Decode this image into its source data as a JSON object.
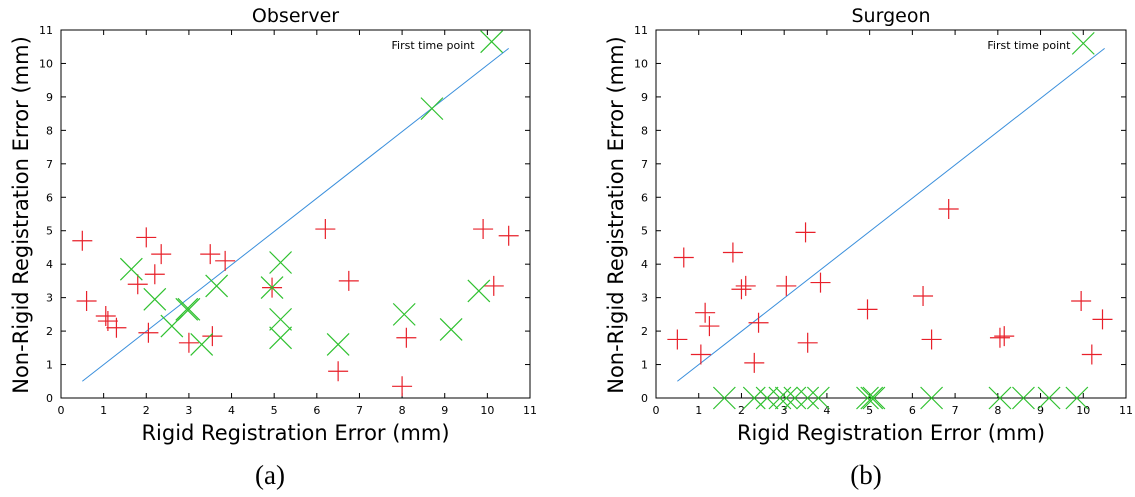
{
  "figure": {
    "captions": [
      "(a)",
      "(b)"
    ]
  },
  "style": {
    "plus_color": "#e8202a",
    "cross_color": "#2fc12f",
    "line_color": "#3a8fdc",
    "axis_color": "#000000"
  },
  "chart_data": [
    {
      "type": "scatter",
      "title": "Observer",
      "xlabel": "Rigid Registration Error (mm)",
      "ylabel": "Non-Rigid Registration Error (mm)",
      "xlim": [
        0,
        11
      ],
      "ylim": [
        0,
        11
      ],
      "xticks": [
        "0",
        "1",
        "2",
        "3",
        "4",
        "5",
        "6",
        "7",
        "8",
        "9",
        "10",
        "11"
      ],
      "yticks": [
        "0",
        "1",
        "2",
        "3",
        "4",
        "5",
        "6",
        "7",
        "8",
        "9",
        "10",
        "11"
      ],
      "grid": false,
      "annotation": {
        "text": "First time point",
        "x": 9.7,
        "y": 10.55
      },
      "identity_line": [
        [
          0.5,
          0.5
        ],
        [
          10.5,
          10.45
        ]
      ],
      "series": [
        {
          "marker": "plus",
          "points": [
            [
              0.5,
              4.7
            ],
            [
              0.6,
              2.9
            ],
            [
              1.05,
              2.45
            ],
            [
              1.1,
              2.3
            ],
            [
              1.3,
              2.1
            ],
            [
              1.8,
              3.4
            ],
            [
              2.0,
              4.8
            ],
            [
              2.05,
              1.95
            ],
            [
              2.2,
              3.7
            ],
            [
              2.35,
              4.3
            ],
            [
              3.0,
              1.65
            ],
            [
              3.5,
              4.3
            ],
            [
              3.55,
              1.85
            ],
            [
              3.85,
              4.1
            ],
            [
              4.95,
              3.3
            ],
            [
              6.2,
              5.05
            ],
            [
              6.5,
              0.8
            ],
            [
              6.75,
              3.5
            ],
            [
              8.0,
              0.35
            ],
            [
              8.1,
              1.8
            ],
            [
              9.9,
              5.05
            ],
            [
              10.15,
              3.35
            ],
            [
              10.5,
              4.85
            ]
          ]
        },
        {
          "marker": "cross",
          "points": [
            [
              1.65,
              3.85
            ],
            [
              2.2,
              2.95
            ],
            [
              2.6,
              2.15
            ],
            [
              2.95,
              2.65
            ],
            [
              3.0,
              2.65
            ],
            [
              3.3,
              1.6
            ],
            [
              3.65,
              3.35
            ],
            [
              4.95,
              3.3
            ],
            [
              5.15,
              4.05
            ],
            [
              5.15,
              2.35
            ],
            [
              5.15,
              1.8
            ],
            [
              6.5,
              1.6
            ],
            [
              8.05,
              2.5
            ],
            [
              8.7,
              8.65
            ],
            [
              9.15,
              2.05
            ],
            [
              9.8,
              3.2
            ],
            [
              10.1,
              10.65
            ]
          ]
        }
      ]
    },
    {
      "type": "scatter",
      "title": "Surgeon",
      "xlabel": "Rigid Registration Error (mm)",
      "ylabel": "Non-Rigid Registration Error (mm)",
      "xlim": [
        0,
        11
      ],
      "ylim": [
        0,
        11
      ],
      "xticks": [
        "0",
        "1",
        "2",
        "3",
        "4",
        "5",
        "6",
        "7",
        "8",
        "9",
        "10",
        "11"
      ],
      "yticks": [
        "0",
        "1",
        "2",
        "3",
        "4",
        "5",
        "6",
        "7",
        "8",
        "9",
        "10",
        "11"
      ],
      "grid": false,
      "annotation": {
        "text": "First time point",
        "x": 9.7,
        "y": 10.55
      },
      "identity_line": [
        [
          0.5,
          0.5
        ],
        [
          10.5,
          10.45
        ]
      ],
      "series": [
        {
          "marker": "plus",
          "points": [
            [
              0.5,
              1.75
            ],
            [
              0.65,
              4.2
            ],
            [
              1.05,
              1.3
            ],
            [
              1.15,
              2.55
            ],
            [
              1.25,
              2.15
            ],
            [
              1.8,
              4.35
            ],
            [
              2.0,
              3.25
            ],
            [
              2.1,
              3.35
            ],
            [
              2.3,
              1.05
            ],
            [
              2.4,
              2.25
            ],
            [
              3.05,
              3.35
            ],
            [
              3.5,
              4.95
            ],
            [
              3.55,
              1.65
            ],
            [
              3.85,
              3.45
            ],
            [
              4.95,
              2.65
            ],
            [
              6.25,
              3.05
            ],
            [
              6.45,
              1.75
            ],
            [
              6.85,
              5.65
            ],
            [
              8.05,
              1.8
            ],
            [
              8.15,
              1.85
            ],
            [
              9.95,
              2.9
            ],
            [
              10.2,
              1.3
            ],
            [
              10.45,
              2.35
            ]
          ]
        },
        {
          "marker": "cross",
          "points": [
            [
              1.6,
              0.0
            ],
            [
              2.3,
              0.0
            ],
            [
              2.6,
              0.0
            ],
            [
              2.9,
              0.0
            ],
            [
              3.05,
              0.0
            ],
            [
              3.25,
              0.0
            ],
            [
              3.55,
              0.0
            ],
            [
              3.8,
              0.0
            ],
            [
              4.95,
              0.0
            ],
            [
              5.05,
              0.0
            ],
            [
              5.1,
              0.0
            ],
            [
              6.45,
              0.0
            ],
            [
              8.05,
              0.0
            ],
            [
              8.6,
              0.0
            ],
            [
              9.2,
              0.0
            ],
            [
              9.85,
              0.0
            ],
            [
              10.0,
              10.6
            ]
          ]
        }
      ]
    }
  ]
}
